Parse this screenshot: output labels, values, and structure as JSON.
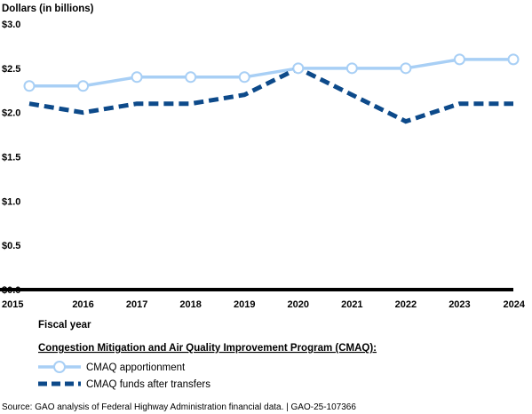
{
  "chart_data": {
    "type": "line",
    "ylabel": "Dollars (in billions)",
    "xlabel": "Fiscal year",
    "x": [
      "2015",
      "2016",
      "2017",
      "2018",
      "2019",
      "2020",
      "2021",
      "2022",
      "2023",
      "2024"
    ],
    "ylim": [
      0,
      3.0
    ],
    "yticks": [
      0,
      0.5,
      1.0,
      1.5,
      2.0,
      2.5,
      3.0
    ],
    "ytick_labels": [
      "$0.0",
      "$0.5",
      "$1.0",
      "$1.5",
      "$2.0",
      "$2.5",
      "$3.0"
    ],
    "grid": false,
    "legend_title": "Congestion Mitigation and Air Quality Improvement Program (CMAQ):",
    "legend_position": "bottom",
    "series": [
      {
        "name": "CMAQ apportionment",
        "values": [
          2.3,
          2.3,
          2.4,
          2.4,
          2.4,
          2.5,
          2.5,
          2.5,
          2.6,
          2.6
        ],
        "color": "#a8cff5",
        "style": "solid-with-markers"
      },
      {
        "name": "CMAQ funds after transfers",
        "values": [
          2.1,
          2.0,
          2.1,
          2.1,
          2.2,
          2.5,
          2.2,
          1.9,
          2.1,
          2.1
        ],
        "color": "#0d4a8a",
        "style": "dashed"
      }
    ]
  },
  "source": "Source: GAO analysis of Federal Highway Administration financial data.  |  GAO-25-107366"
}
